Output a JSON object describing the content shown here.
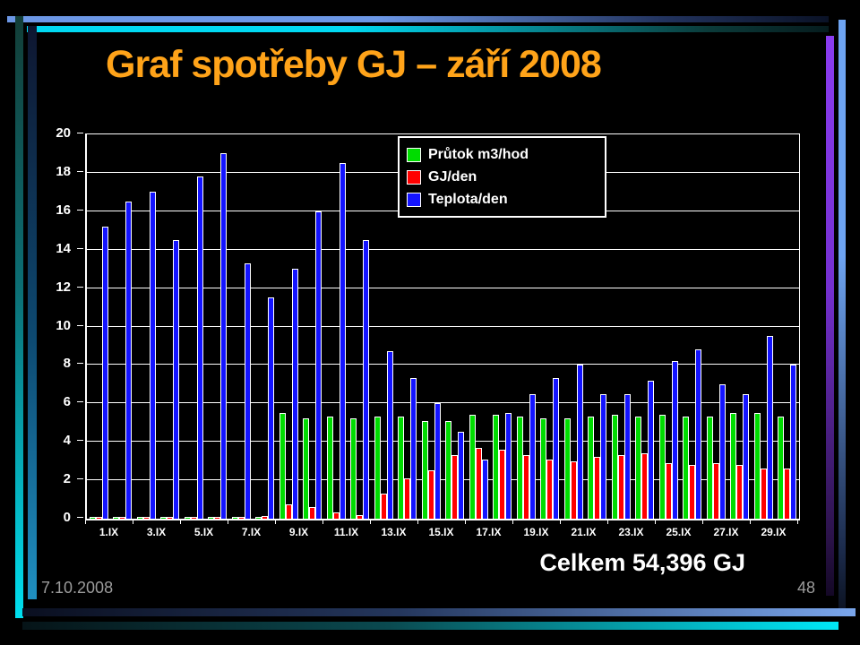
{
  "slide": {
    "title": "Graf spotřeby GJ – září 2008",
    "total_label": "Celkem 54,396 GJ",
    "footer_date": "7.10.2008",
    "page_number": "48",
    "colors": {
      "background": "#000000",
      "title": "#FFA319",
      "text": "#FFFFFF",
      "footer_text": "#9C9C9C"
    }
  },
  "chart_data": {
    "type": "bar",
    "title": "",
    "xlabel": "",
    "ylabel": "",
    "ylim": [
      0,
      20
    ],
    "ytick_step": 2,
    "y_tick_labels": [
      "0",
      "2",
      "4",
      "6",
      "8",
      "10",
      "12",
      "14",
      "16",
      "18",
      "20"
    ],
    "grid": true,
    "legend_position": "top-center-inside",
    "categories": [
      "1.IX",
      "2.IX",
      "3.IX",
      "4.IX",
      "5.IX",
      "6.IX",
      "7.IX",
      "8.IX",
      "9.IX",
      "10.IX",
      "11.IX",
      "12.IX",
      "13.IX",
      "14.IX",
      "15.IX",
      "16.IX",
      "17.IX",
      "18.IX",
      "19.IX",
      "20.IX",
      "21.IX",
      "22.IX",
      "23.IX",
      "24.IX",
      "25.IX",
      "26.IX",
      "27.IX",
      "28.IX",
      "29.IX",
      "30.IX"
    ],
    "x_tick_labels": [
      "1.IX",
      "3.IX",
      "5.IX",
      "7.IX",
      "9.IX",
      "11.IX",
      "13.IX",
      "15.IX",
      "17.IX",
      "19.IX",
      "21.IX",
      "23.IX",
      "25.IX",
      "27.IX",
      "29.IX"
    ],
    "series": [
      {
        "name": "Průtok m3/hod",
        "color": "#00DC00",
        "values": [
          0.1,
          0.1,
          0.1,
          0.1,
          0.1,
          0.1,
          0.1,
          0.1,
          5.5,
          5.2,
          5.3,
          5.2,
          5.3,
          5.3,
          5.1,
          5.1,
          5.4,
          5.4,
          5.3,
          5.2,
          5.2,
          5.3,
          5.4,
          5.3,
          5.4,
          5.3,
          5.3,
          5.5,
          5.5,
          5.3
        ]
      },
      {
        "name": "GJ/den",
        "color": "#FF0000",
        "values": [
          0.1,
          0.1,
          0.1,
          0.1,
          0.1,
          0.1,
          0.1,
          0.15,
          0.75,
          0.6,
          0.35,
          0.2,
          1.3,
          2.1,
          2.5,
          3.3,
          3.7,
          3.6,
          3.3,
          3.1,
          3.0,
          3.2,
          3.3,
          3.4,
          2.9,
          2.8,
          2.9,
          2.8,
          2.6,
          2.6
        ]
      },
      {
        "name": "Teplota/den",
        "color": "#1414FF",
        "values": [
          15.2,
          16.5,
          17.0,
          14.5,
          17.8,
          19.0,
          13.3,
          11.5,
          13.0,
          16.0,
          18.5,
          14.5,
          8.7,
          7.3,
          6.0,
          4.5,
          3.1,
          5.5,
          6.5,
          7.3,
          8.0,
          6.5,
          6.5,
          7.2,
          8.2,
          8.8,
          7.0,
          6.5,
          9.5,
          8.0
        ]
      }
    ]
  }
}
